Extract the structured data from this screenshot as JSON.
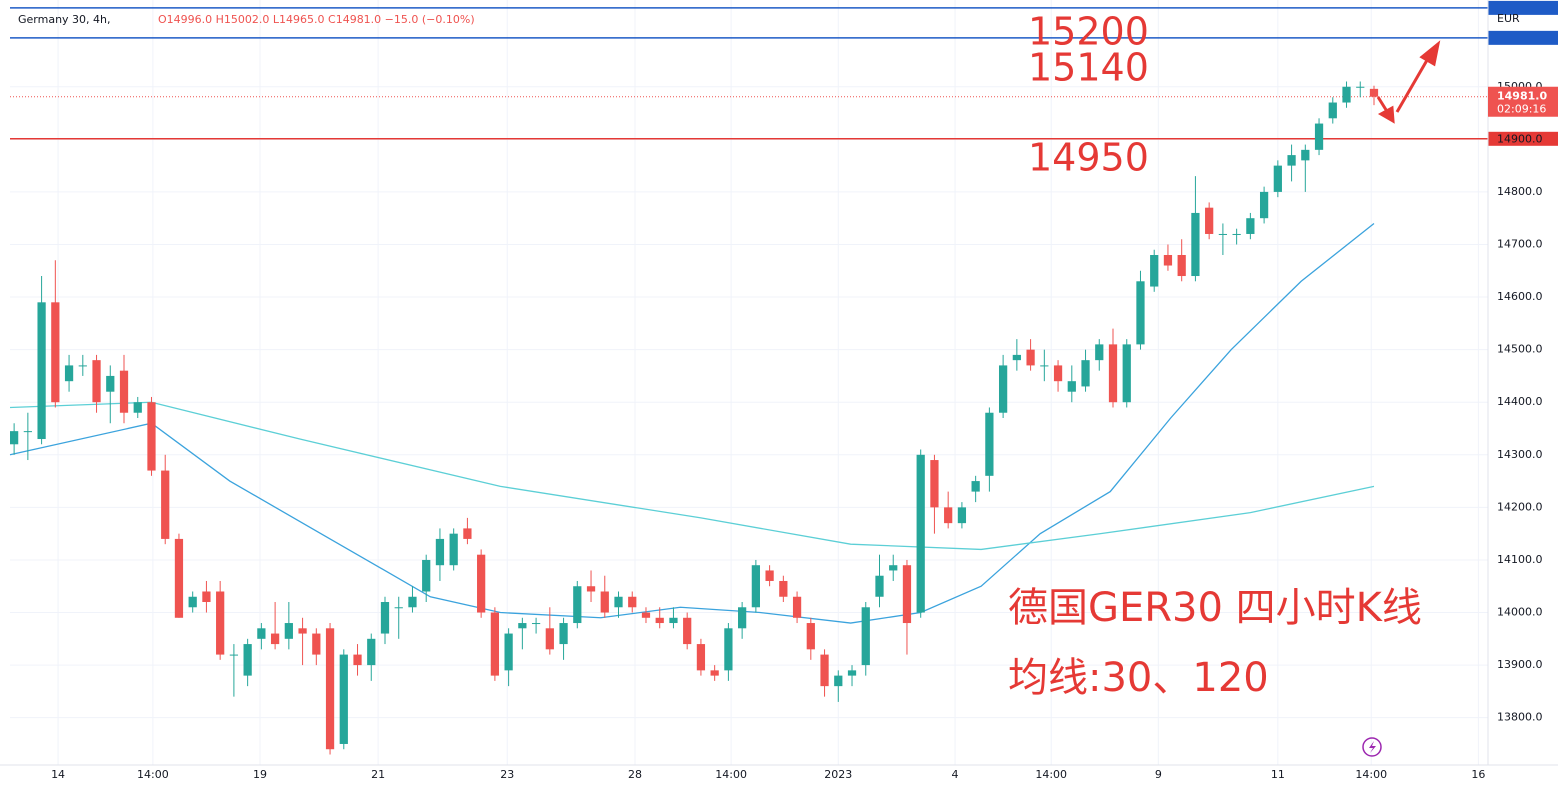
{
  "chart_data": {
    "type": "candlestick",
    "symbol": "Germany 30, 4h,",
    "ohlc_header": "O14996.0 H15002.0 L14965.0 C14981.0 −15.0 (−0.10%)",
    "currency": "EUR",
    "last_price": {
      "value": 14981,
      "label": "14981.0"
    },
    "countdown": "02:09:16",
    "annotations": [
      "15200",
      "15140",
      "14950"
    ],
    "caption": [
      "德国GER30 四小时K线",
      "均线:30、120"
    ],
    "up_color": "#26a69a",
    "down_color": "#ef5350",
    "candles": [
      [
        14320,
        14360,
        14300,
        14345
      ],
      [
        14345,
        14380,
        14290,
        14345
      ],
      [
        14330,
        14640,
        14320,
        14590
      ],
      [
        14590,
        14670,
        14390,
        14400
      ],
      [
        14440,
        14490,
        14420,
        14470
      ],
      [
        14470,
        14490,
        14450,
        14470
      ],
      [
        14480,
        14490,
        14380,
        14400
      ],
      [
        14420,
        14470,
        14360,
        14450
      ],
      [
        14460,
        14490,
        14360,
        14380
      ],
      [
        14380,
        14410,
        14370,
        14400
      ],
      [
        14400,
        14410,
        14260,
        14270
      ],
      [
        14270,
        14300,
        14130,
        14140
      ],
      [
        14140,
        14150,
        13990,
        13990
      ],
      [
        14010,
        14040,
        14000,
        14030
      ],
      [
        14040,
        14060,
        14000,
        14020
      ],
      [
        14040,
        14060,
        13910,
        13920
      ],
      [
        13920,
        13940,
        13840,
        13920
      ],
      [
        13880,
        13950,
        13860,
        13940
      ],
      [
        13950,
        13980,
        13930,
        13970
      ],
      [
        13960,
        14020,
        13930,
        13940
      ],
      [
        13950,
        14020,
        13930,
        13980
      ],
      [
        13970,
        13990,
        13900,
        13960
      ],
      [
        13960,
        13970,
        13900,
        13920
      ],
      [
        13970,
        13980,
        13730,
        13740
      ],
      [
        13750,
        13930,
        13740,
        13920
      ],
      [
        13920,
        13940,
        13880,
        13900
      ],
      [
        13900,
        13960,
        13870,
        13950
      ],
      [
        13960,
        14030,
        13940,
        14020
      ],
      [
        14010,
        14030,
        13950,
        14010
      ],
      [
        14010,
        14050,
        14000,
        14030
      ],
      [
        14040,
        14110,
        14020,
        14100
      ],
      [
        14090,
        14160,
        14060,
        14140
      ],
      [
        14090,
        14160,
        14080,
        14150
      ],
      [
        14160,
        14180,
        14130,
        14140
      ],
      [
        14110,
        14120,
        13990,
        14000
      ],
      [
        14000,
        14010,
        13870,
        13880
      ],
      [
        13890,
        13970,
        13860,
        13960
      ],
      [
        13970,
        13990,
        13930,
        13980
      ],
      [
        13980,
        13990,
        13960,
        13980
      ],
      [
        13970,
        14010,
        13920,
        13930
      ],
      [
        13940,
        13990,
        13910,
        13980
      ],
      [
        13980,
        14060,
        13970,
        14050
      ],
      [
        14050,
        14080,
        14020,
        14040
      ],
      [
        14040,
        14070,
        13990,
        14000
      ],
      [
        14010,
        14040,
        13990,
        14030
      ],
      [
        14030,
        14040,
        14000,
        14010
      ],
      [
        14000,
        14010,
        13980,
        13990
      ],
      [
        13990,
        14010,
        13970,
        13980
      ],
      [
        13980,
        14010,
        13970,
        13990
      ],
      [
        13990,
        14000,
        13930,
        13940
      ],
      [
        13940,
        13950,
        13880,
        13890
      ],
      [
        13890,
        13900,
        13870,
        13880
      ],
      [
        13890,
        13980,
        13870,
        13970
      ],
      [
        13970,
        14020,
        13950,
        14010
      ],
      [
        14010,
        14100,
        14000,
        14090
      ],
      [
        14080,
        14090,
        14050,
        14060
      ],
      [
        14060,
        14070,
        14020,
        14030
      ],
      [
        14030,
        14040,
        13980,
        13990
      ],
      [
        13980,
        13990,
        13910,
        13930
      ],
      [
        13920,
        13930,
        13840,
        13860
      ],
      [
        13860,
        13890,
        13830,
        13880
      ],
      [
        13880,
        13900,
        13860,
        13890
      ],
      [
        13900,
        14020,
        13880,
        14010
      ],
      [
        14030,
        14110,
        14010,
        14070
      ],
      [
        14080,
        14110,
        14060,
        14090
      ],
      [
        14090,
        14100,
        13920,
        13980
      ],
      [
        14000,
        14310,
        13990,
        14300
      ],
      [
        14290,
        14300,
        14150,
        14200
      ],
      [
        14200,
        14230,
        14160,
        14170
      ],
      [
        14170,
        14210,
        14160,
        14200
      ],
      [
        14230,
        14260,
        14210,
        14250
      ],
      [
        14260,
        14390,
        14230,
        14380
      ],
      [
        14380,
        14490,
        14370,
        14470
      ],
      [
        14480,
        14520,
        14460,
        14490
      ],
      [
        14500,
        14520,
        14460,
        14470
      ],
      [
        14470,
        14500,
        14440,
        14470
      ],
      [
        14470,
        14480,
        14420,
        14440
      ],
      [
        14420,
        14470,
        14400,
        14440
      ],
      [
        14430,
        14500,
        14420,
        14480
      ],
      [
        14480,
        14520,
        14460,
        14510
      ],
      [
        14510,
        14540,
        14390,
        14400
      ],
      [
        14400,
        14520,
        14390,
        14510
      ],
      [
        14510,
        14650,
        14500,
        14630
      ],
      [
        14620,
        14690,
        14610,
        14680
      ],
      [
        14680,
        14700,
        14650,
        14660
      ],
      [
        14680,
        14710,
        14630,
        14640
      ],
      [
        14640,
        14830,
        14630,
        14760
      ],
      [
        14770,
        14780,
        14710,
        14720
      ],
      [
        14720,
        14740,
        14680,
        14720
      ],
      [
        14720,
        14730,
        14700,
        14720
      ],
      [
        14720,
        14760,
        14710,
        14750
      ],
      [
        14750,
        14810,
        14740,
        14800
      ],
      [
        14800,
        14860,
        14790,
        14850
      ],
      [
        14850,
        14890,
        14820,
        14870
      ],
      [
        14860,
        14890,
        14800,
        14880
      ],
      [
        14880,
        14940,
        14870,
        14930
      ],
      [
        14940,
        14980,
        14930,
        14970
      ],
      [
        14970,
        15010,
        14960,
        15000
      ],
      [
        15000,
        15010,
        14980,
        15000
      ],
      [
        14996,
        15002,
        14965,
        14981
      ]
    ],
    "ma": [
      {
        "color": "#3ba3dd",
        "x": [
          -0.3,
          10,
          15.7,
          23,
          30.3,
          35.4,
          42.7,
          48.5,
          54.3,
          60.9,
          66,
          70.4,
          74.7,
          79.8,
          84.2,
          88.6,
          93.7,
          99
        ],
        "values": [
          14300,
          14360,
          14250,
          14140,
          14030,
          14000,
          13990,
          14010,
          14000,
          13980,
          14000,
          14050,
          14150,
          14230,
          14370,
          14500,
          14630,
          14740
        ]
      },
      {
        "color": "#5ccfd6",
        "x": [
          -0.3,
          10,
          20.8,
          35.4,
          50,
          60.9,
          70.4,
          79.1,
          90,
          99
        ],
        "values": [
          14390,
          14400,
          14330,
          14240,
          14180,
          14130,
          14120,
          14150,
          14190,
          14240
        ]
      }
    ],
    "levels": [
      {
        "value": 15150,
        "color": "#1e5bc6"
      },
      {
        "value": 15093,
        "color": "#1e5bc6"
      },
      {
        "value": 14901,
        "color": "#e53935"
      }
    ],
    "ylim": [
      13710,
      15165
    ],
    "yticks": [
      {
        "value": 15000,
        "label": "15000.0"
      },
      {
        "value": 14900,
        "label": "14900.0"
      },
      {
        "value": 14800,
        "label": "14800.0"
      },
      {
        "value": 14700,
        "label": "14700.0"
      },
      {
        "value": 14600,
        "label": "14600.0"
      },
      {
        "value": 14500,
        "label": "14500.0"
      },
      {
        "value": 14400,
        "label": "14400.0"
      },
      {
        "value": 14300,
        "label": "14300.0"
      },
      {
        "value": 14200,
        "label": "14200.0"
      },
      {
        "value": 14100,
        "label": "14100.0"
      },
      {
        "value": 14000,
        "label": "14000.0"
      },
      {
        "value": 13900,
        "label": "13900.0"
      },
      {
        "value": 13800,
        "label": "13800.0"
      }
    ],
    "xlim": [
      -0.3,
      107.3
    ],
    "xticks": [
      {
        "value": 3.2,
        "label": "14"
      },
      {
        "value": 10.1,
        "label": "14:00"
      },
      {
        "value": 17.9,
        "label": "19"
      },
      {
        "value": 26.5,
        "label": "21"
      },
      {
        "value": 35.9,
        "label": "23"
      },
      {
        "value": 45.2,
        "label": "28"
      },
      {
        "value": 52.2,
        "label": "14:00"
      },
      {
        "value": 60,
        "label": "2023"
      },
      {
        "value": 68.5,
        "label": "4"
      },
      {
        "value": 75.5,
        "label": "14:00"
      },
      {
        "value": 83.3,
        "label": "9"
      },
      {
        "value": 92,
        "label": "11"
      },
      {
        "value": 98.8,
        "label": "14:00"
      },
      {
        "value": 106.6,
        "label": "16"
      }
    ],
    "grid": true
  }
}
